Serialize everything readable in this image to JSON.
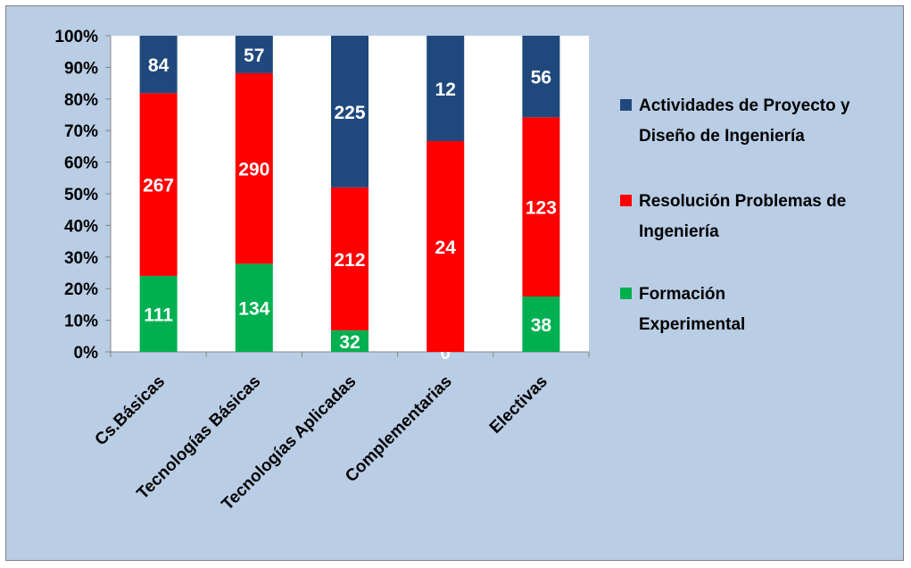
{
  "chart_data": {
    "type": "bar",
    "stacked": true,
    "normalized": true,
    "categories": [
      "Cs.Básicas",
      "Tecnologías Básicas",
      "Tecnologías Aplicadas",
      "Complementarias",
      "Electivas"
    ],
    "series": [
      {
        "name": "Formación Experimental",
        "color": "#00b050",
        "values": [
          111,
          134,
          32,
          0,
          38
        ]
      },
      {
        "name": "Resolución Problemas de Ingeniería",
        "color": "#ff0000",
        "values": [
          267,
          290,
          212,
          24,
          123
        ]
      },
      {
        "name": "Actividades de Proyecto y Diseño de Ingeniería",
        "color": "#1f497d",
        "values": [
          84,
          57,
          225,
          12,
          56
        ]
      }
    ],
    "legend_order": [
      2,
      1,
      0
    ],
    "legend_lines": [
      [
        "Actividades de Proyecto y",
        "Diseño de Ingeniería"
      ],
      [
        "Resolución Problemas de",
        "Ingeniería"
      ],
      [
        "Formación",
        "Experimental"
      ]
    ],
    "yticks": [
      "0%",
      "10%",
      "20%",
      "30%",
      "40%",
      "50%",
      "60%",
      "70%",
      "80%",
      "90%",
      "100%"
    ],
    "ylim": [
      0,
      100
    ],
    "legend_position": "right",
    "grid": false,
    "plot_background": "#ffffff",
    "chart_background": "#b9cde5"
  }
}
